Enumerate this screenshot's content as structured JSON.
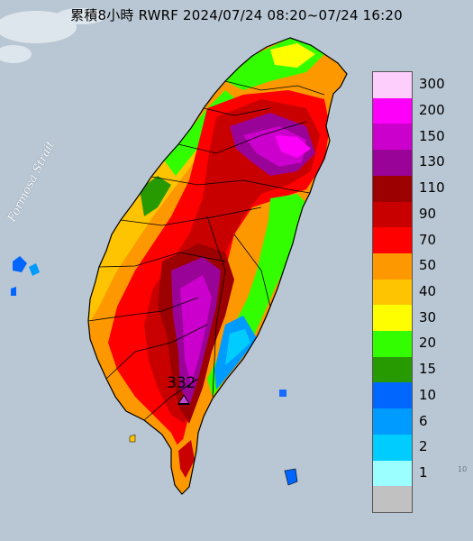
{
  "title": "累積8小時 RWRF 2024/07/24 08:20~07/24 16:20",
  "sea_label": "Formosa Strait",
  "max_value_label": "332",
  "legend": {
    "items": [
      {
        "label": "300",
        "color": "#fdcdfc"
      },
      {
        "label": "200",
        "color": "#fd00f9"
      },
      {
        "label": "150",
        "color": "#cc00cc"
      },
      {
        "label": "130",
        "color": "#9a0398"
      },
      {
        "label": "110",
        "color": "#9c0001"
      },
      {
        "label": "90",
        "color": "#c90000"
      },
      {
        "label": "70",
        "color": "#fe0000"
      },
      {
        "label": "50",
        "color": "#fd9800"
      },
      {
        "label": "40",
        "color": "#fec301"
      },
      {
        "label": "30",
        "color": "#fffe00"
      },
      {
        "label": "20",
        "color": "#32fe00"
      },
      {
        "label": "15",
        "color": "#279a02"
      },
      {
        "label": "10",
        "color": "#0166fe"
      },
      {
        "label": "6",
        "color": "#009bff"
      },
      {
        "label": "2",
        "color": "#00cdfe"
      },
      {
        "label": "1",
        "color": "#9cffff"
      },
      {
        "label": "",
        "color": "#c1c1c1"
      }
    ]
  }
}
